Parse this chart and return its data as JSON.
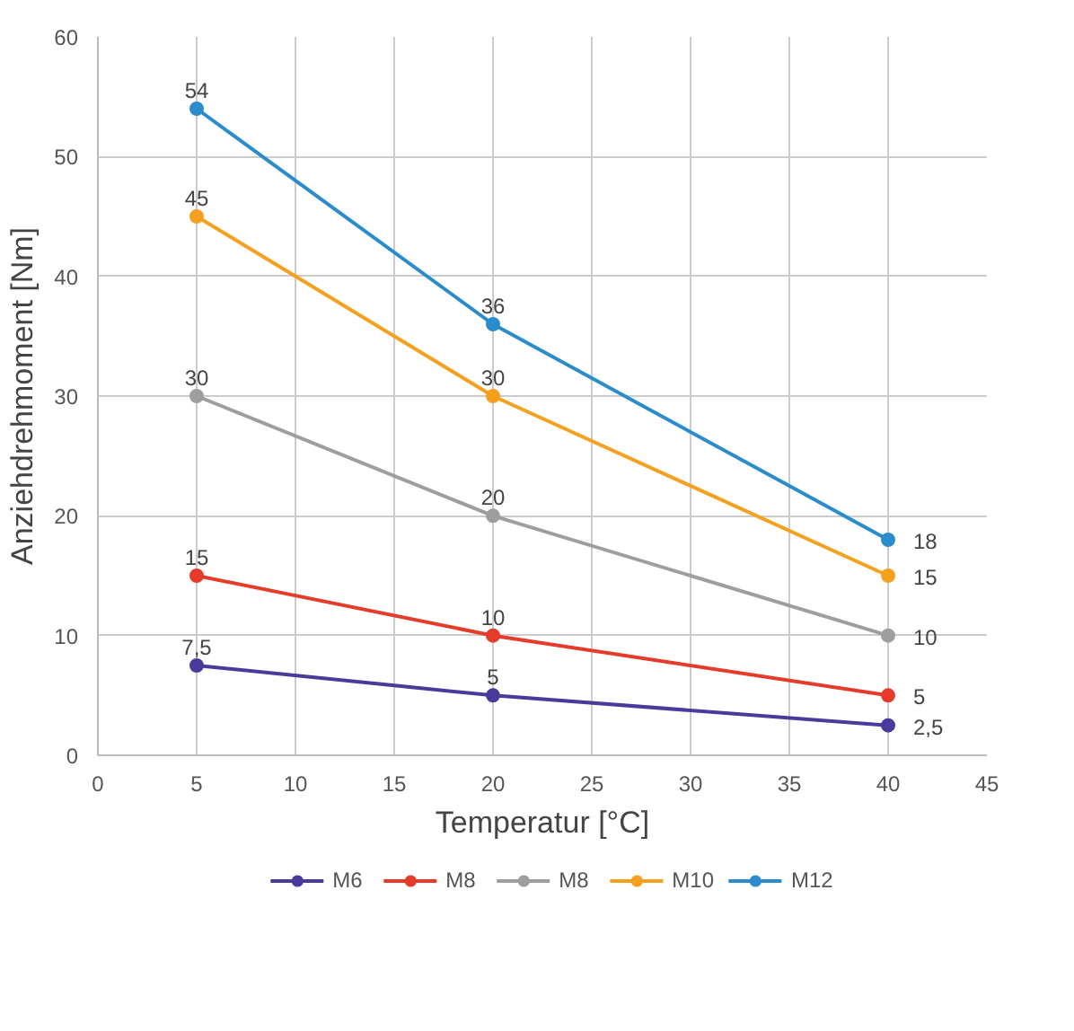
{
  "chart_data": {
    "type": "line",
    "xlabel": "Temperatur [°C]",
    "ylabel": "Anziehdrehmoment [Nm]",
    "x": [
      5,
      20,
      40
    ],
    "xlim": [
      0,
      45
    ],
    "xticks": [
      0,
      5,
      10,
      15,
      20,
      25,
      30,
      35,
      40,
      45
    ],
    "ylim": [
      0,
      60
    ],
    "yticks": [
      0,
      10,
      20,
      30,
      40,
      50,
      60
    ],
    "grid": true,
    "legend": "bottom",
    "marker": "circle",
    "line_style": "solid",
    "series": [
      {
        "name": "M6",
        "color": "#4a3a9c",
        "values": [
          7.5,
          5,
          2.5
        ],
        "value_labels": [
          "7,5",
          "5",
          "2,5"
        ]
      },
      {
        "name": "M8",
        "color": "#e63b2a",
        "values": [
          15,
          10,
          5
        ],
        "value_labels": [
          "15",
          "10",
          "5"
        ]
      },
      {
        "name": "M8",
        "color": "#9e9e9e",
        "values": [
          30,
          20,
          10
        ],
        "value_labels": [
          "30",
          "20",
          "10"
        ]
      },
      {
        "name": "M10",
        "color": "#f5a01f",
        "values": [
          45,
          30,
          15
        ],
        "value_labels": [
          "45",
          "30",
          "15"
        ]
      },
      {
        "name": "M12",
        "color": "#2b8ccc",
        "values": [
          54,
          36,
          18
        ],
        "value_labels": [
          "54",
          "36",
          "18"
        ]
      }
    ]
  }
}
